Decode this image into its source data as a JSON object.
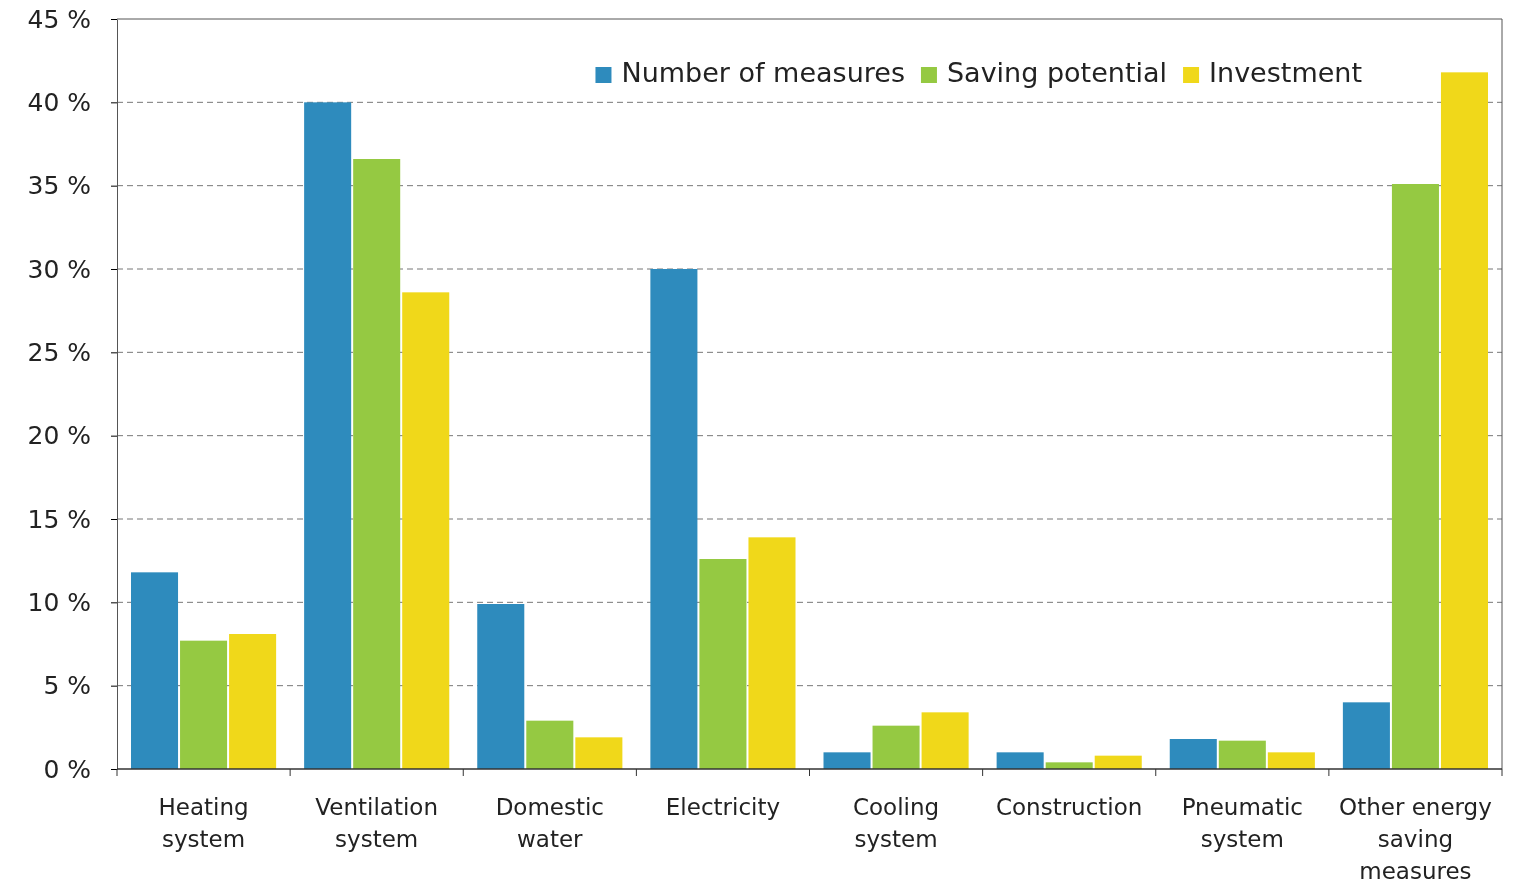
{
  "chart_data": {
    "type": "bar",
    "categories": [
      "Heating system",
      "Ventilation system",
      "Domestic water",
      "Electricity",
      "Cooling system",
      "Construction",
      "Pneumatic system",
      "Other energy saving measures"
    ],
    "series": [
      {
        "name": "Number of measures",
        "color": "#2e8bbd",
        "values": [
          11.8,
          40.0,
          9.9,
          30.0,
          1.0,
          1.0,
          1.8,
          4.0
        ]
      },
      {
        "name": "Saving potential",
        "color": "#95c942",
        "values": [
          7.7,
          36.6,
          2.9,
          12.6,
          2.6,
          0.4,
          1.7,
          35.1
        ]
      },
      {
        "name": "Investment",
        "color": "#f0d81a",
        "values": [
          8.1,
          28.6,
          1.9,
          13.9,
          3.4,
          0.8,
          1.0,
          41.8
        ]
      }
    ],
    "ylim": [
      0,
      45
    ],
    "yticks": [
      {
        "value": 0,
        "label": "0 %"
      },
      {
        "value": 5,
        "label": "5 %"
      },
      {
        "value": 10,
        "label": "10 %"
      },
      {
        "value": 15,
        "label": "15 %"
      },
      {
        "value": 20,
        "label": "20 %"
      },
      {
        "value": 25,
        "label": "25 %"
      },
      {
        "value": 30,
        "label": "30 %"
      },
      {
        "value": 35,
        "label": "35 %"
      },
      {
        "value": 40,
        "label": "40 %"
      },
      {
        "value": 45,
        "label": "45 %"
      }
    ],
    "grid": "y",
    "legend": "top right"
  }
}
